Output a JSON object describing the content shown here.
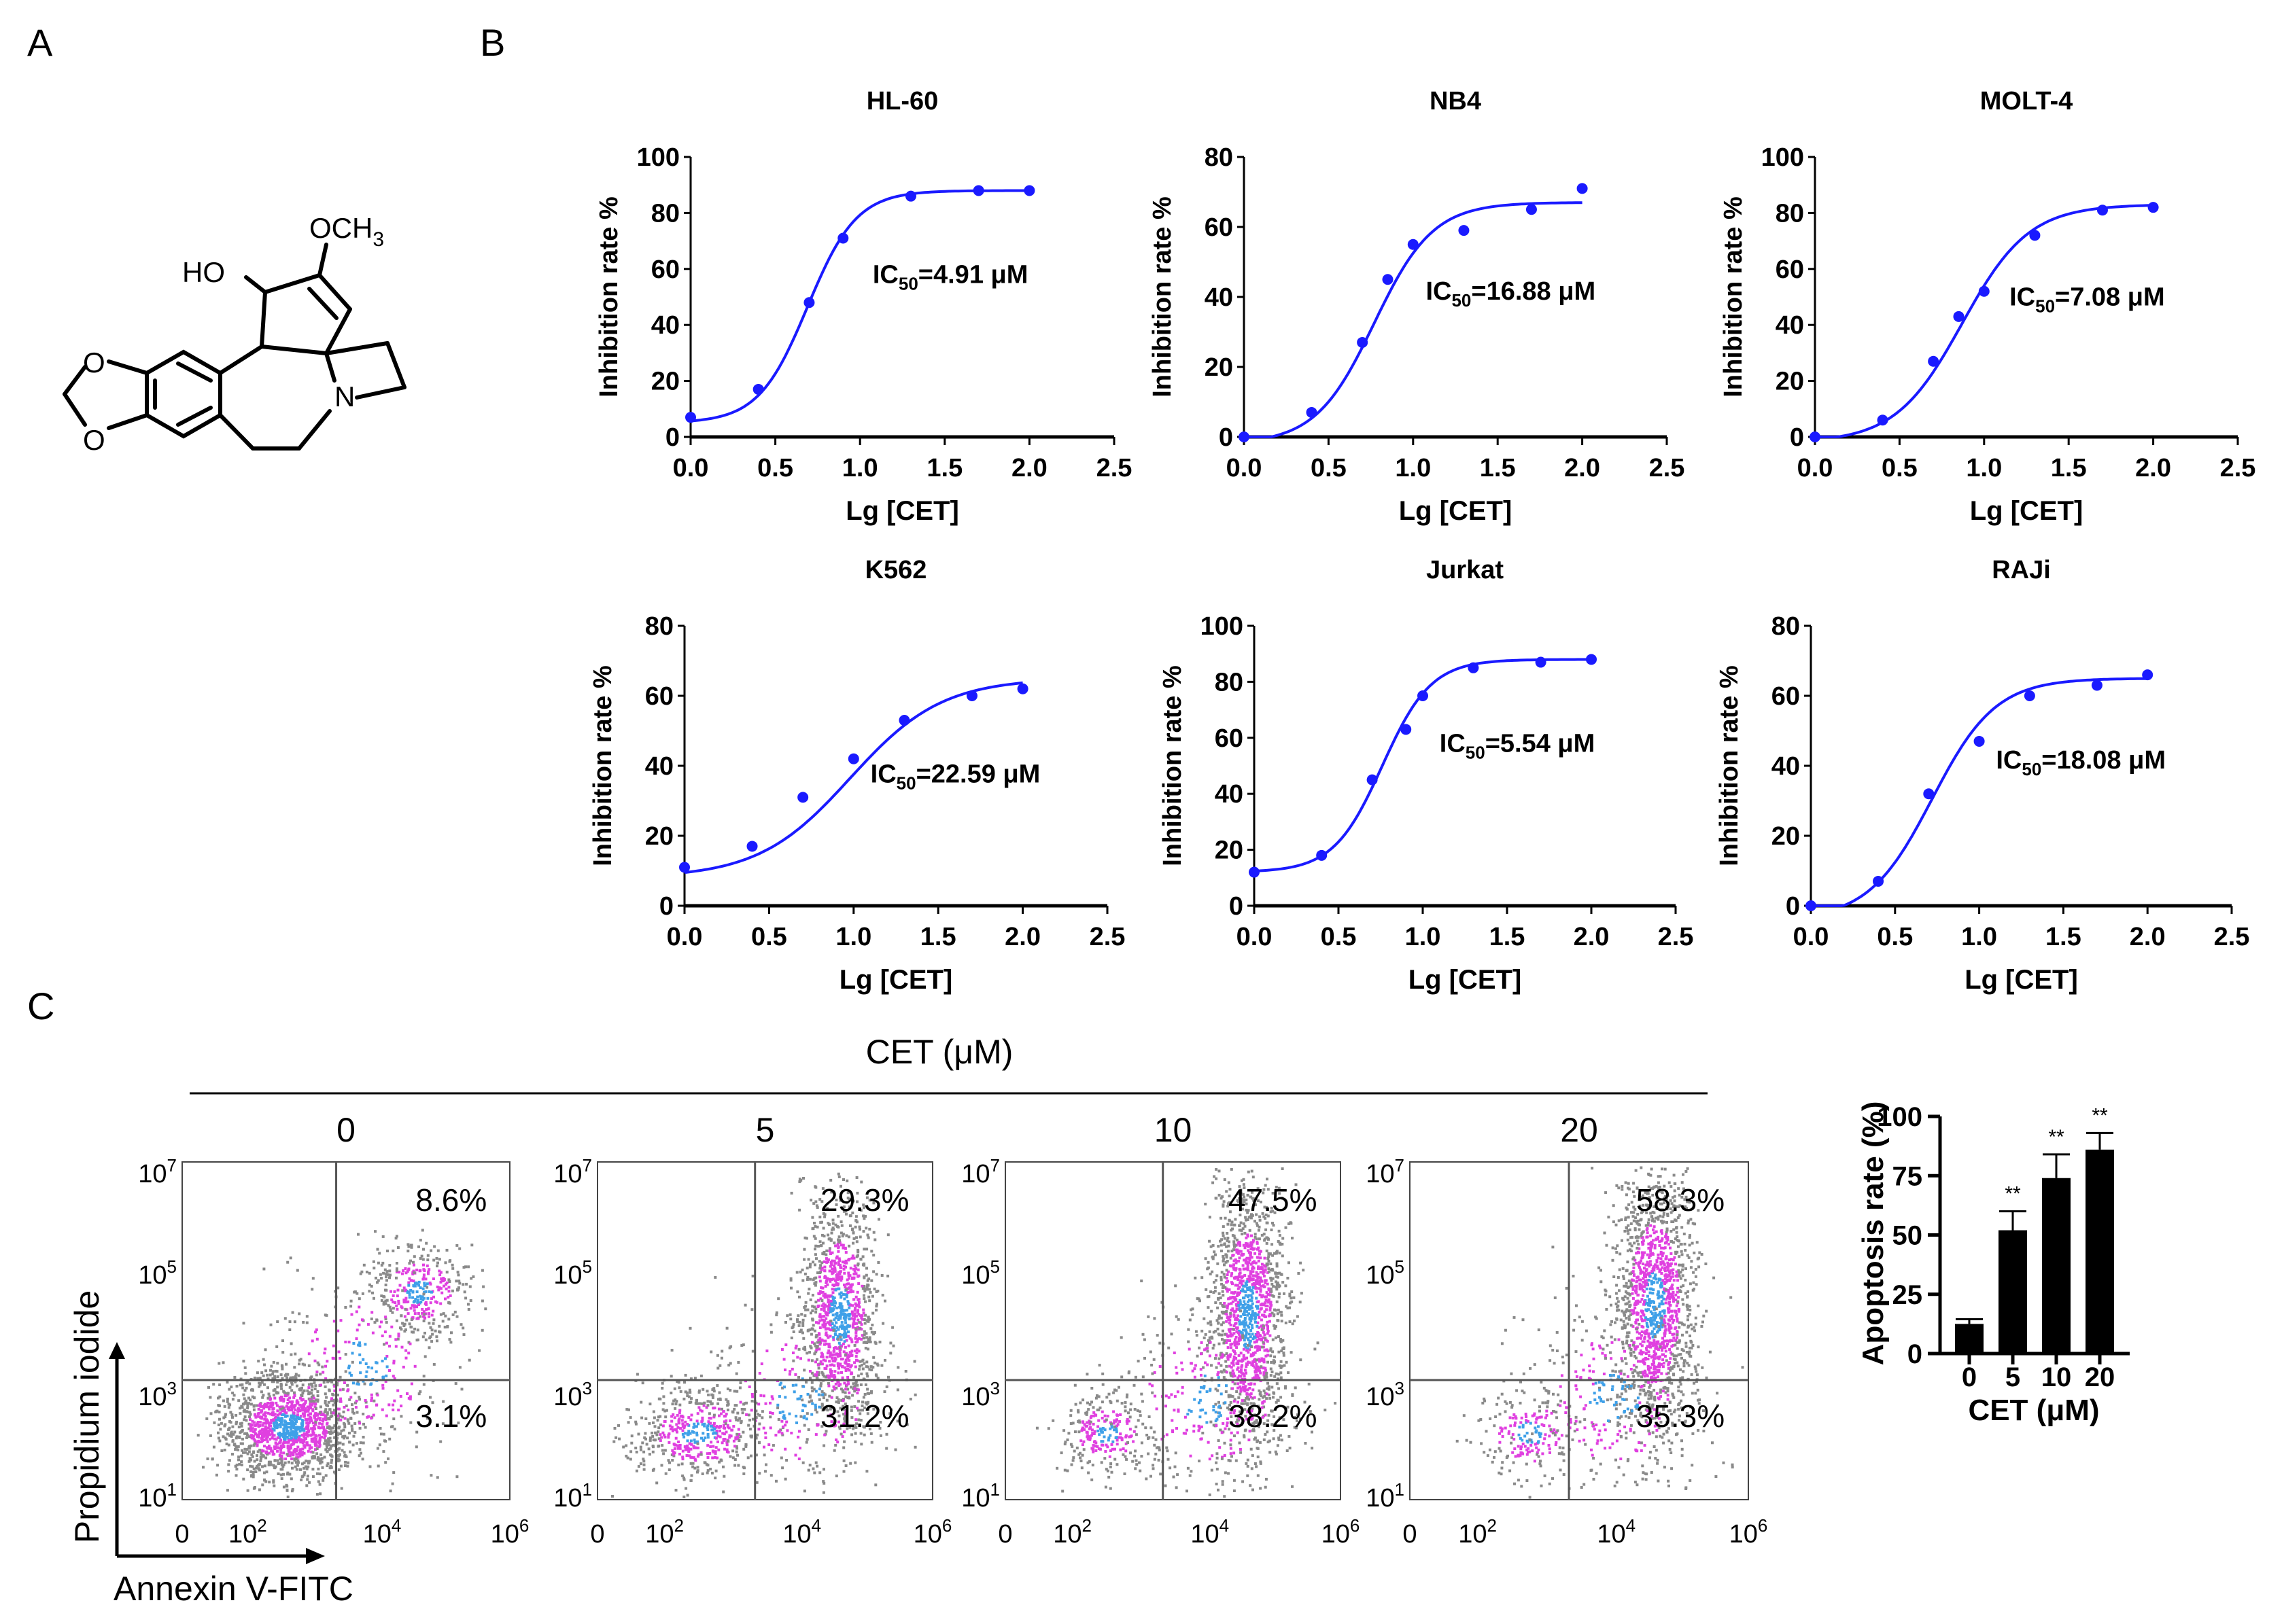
{
  "panel_labels": {
    "a": "A",
    "b": "B",
    "c": "C"
  },
  "structure": {
    "atoms": {
      "ho": "HO",
      "och3": "OCH",
      "och3_sub": "3",
      "n": "N",
      "o1": "O",
      "o2": "O"
    }
  },
  "chart_data": [
    {
      "type": "line",
      "title": "HL-60",
      "xlabel": "Lg [CET]",
      "ylabel": "Inhibition rate %",
      "xlim": [
        0,
        2.5
      ],
      "ylim": [
        0,
        100
      ],
      "xticks": [
        "0.0",
        "0.5",
        "1.0",
        "1.5",
        "2.0",
        "2.5"
      ],
      "yticks": [
        "0",
        "20",
        "40",
        "60",
        "80",
        "100"
      ],
      "x": [
        0,
        0.4,
        0.7,
        0.9,
        1.3,
        1.7,
        2.0
      ],
      "y": [
        7,
        17,
        48,
        71,
        86,
        88,
        88
      ],
      "fit": {
        "bottom": 5,
        "top": 88,
        "log_mid": 0.69,
        "hill": 3.0
      },
      "annotation": {
        "prefix": "IC",
        "sub": "50",
        "value": "=4.91 μM"
      }
    },
    {
      "type": "line",
      "title": "NB4",
      "xlabel": "Lg [CET]",
      "ylabel": "Inhibition rate %",
      "xlim": [
        0,
        2.5
      ],
      "ylim": [
        0,
        80
      ],
      "xticks": [
        "0.0",
        "0.5",
        "1.0",
        "1.5",
        "2.0",
        "2.5"
      ],
      "yticks": [
        "0",
        "20",
        "40",
        "60",
        "80"
      ],
      "x": [
        0,
        0.4,
        0.7,
        0.85,
        1.0,
        1.3,
        1.7,
        2.0
      ],
      "y": [
        0,
        7,
        27,
        45,
        55,
        59,
        65,
        71
      ],
      "fit": {
        "bottom": -2,
        "top": 67,
        "log_mid": 0.77,
        "hill": 2.5
      },
      "annotation": {
        "prefix": "IC",
        "sub": "50",
        "value": "=16.88 μM"
      }
    },
    {
      "type": "line",
      "title": "MOLT-4",
      "xlabel": "Lg [CET]",
      "ylabel": "Inhibition rate %",
      "xlim": [
        0,
        2.5
      ],
      "ylim": [
        0,
        100
      ],
      "xticks": [
        "0.0",
        "0.5",
        "1.0",
        "1.5",
        "2.0",
        "2.5"
      ],
      "yticks": [
        "0",
        "20",
        "40",
        "60",
        "80",
        "100"
      ],
      "x": [
        0,
        0.4,
        0.7,
        0.85,
        1.0,
        1.3,
        1.7,
        2.0
      ],
      "y": [
        0,
        6,
        27,
        43,
        52,
        72,
        81,
        82
      ],
      "fit": {
        "bottom": -2,
        "top": 83,
        "log_mid": 0.87,
        "hill": 2.2
      },
      "annotation": {
        "prefix": "IC",
        "sub": "50",
        "value": "=7.08 μM"
      }
    },
    {
      "type": "line",
      "title": "K562",
      "xlabel": "Lg [CET]",
      "ylabel": "Inhibition rate %",
      "xlim": [
        0,
        2.5
      ],
      "ylim": [
        0,
        80
      ],
      "xticks": [
        "0.0",
        "0.5",
        "1.0",
        "1.5",
        "2.0",
        "2.5"
      ],
      "yticks": [
        "0",
        "20",
        "40",
        "60",
        "80"
      ],
      "x": [
        0,
        0.4,
        0.7,
        1.0,
        1.3,
        1.7,
        2.0
      ],
      "y": [
        11,
        17,
        31,
        42,
        53,
        60,
        62
      ],
      "fit": {
        "bottom": 8,
        "top": 65,
        "log_mid": 0.98,
        "hill": 1.6
      },
      "annotation": {
        "prefix": "IC",
        "sub": "50",
        "value": "=22.59 μM"
      }
    },
    {
      "type": "line",
      "title": "Jurkat",
      "xlabel": "Lg [CET]",
      "ylabel": "Inhibition rate %",
      "xlim": [
        0,
        2.5
      ],
      "ylim": [
        0,
        100
      ],
      "xticks": [
        "0.0",
        "0.5",
        "1.0",
        "1.5",
        "2.0",
        "2.5"
      ],
      "yticks": [
        "0",
        "20",
        "40",
        "60",
        "80",
        "100"
      ],
      "x": [
        0,
        0.4,
        0.7,
        0.9,
        1.0,
        1.3,
        1.7,
        2.0
      ],
      "y": [
        12,
        18,
        45,
        63,
        75,
        85,
        87,
        88
      ],
      "fit": {
        "bottom": 12,
        "top": 88,
        "log_mid": 0.76,
        "hill": 3.0
      },
      "annotation": {
        "prefix": "IC",
        "sub": "50",
        "value": "=5.54 μM"
      }
    },
    {
      "type": "line",
      "title": "RAJi",
      "xlabel": "Lg [CET]",
      "ylabel": "Inhibition rate %",
      "xlim": [
        0,
        2.5
      ],
      "ylim": [
        0,
        80
      ],
      "xticks": [
        "0.0",
        "0.5",
        "1.0",
        "1.5",
        "2.0",
        "2.5"
      ],
      "yticks": [
        "0",
        "20",
        "40",
        "60",
        "80"
      ],
      "x": [
        0,
        0.4,
        0.7,
        1.0,
        1.3,
        1.7,
        2.0
      ],
      "y": [
        0,
        7,
        32,
        47,
        60,
        63,
        66
      ],
      "fit": {
        "bottom": -4,
        "top": 65,
        "log_mid": 0.72,
        "hill": 2.3
      },
      "annotation": {
        "prefix": "IC",
        "sub": "50",
        "value": "=18.08 μM"
      }
    },
    {
      "type": "scatter",
      "title": "CET (μM)",
      "xlabel": "Annexin V-FITC",
      "ylabel": "Propidium iodide",
      "panels": [
        {
          "concentration": "0",
          "upper_right": "8.6%",
          "lower_right": "3.1%"
        },
        {
          "concentration": "5",
          "upper_right": "29.3%",
          "lower_right": "31.2%"
        },
        {
          "concentration": "10",
          "upper_right": "47.5%",
          "lower_right": "38.2%"
        },
        {
          "concentration": "20",
          "upper_right": "58.3%",
          "lower_right": "35.3%"
        }
      ],
      "xticks": [
        {
          "base": "0",
          "exp": ""
        },
        {
          "base": "10",
          "exp": "2"
        },
        {
          "base": "10",
          "exp": "4"
        },
        {
          "base": "10",
          "exp": "6"
        }
      ],
      "yticks": [
        {
          "base": "10",
          "exp": "7"
        },
        {
          "base": "10",
          "exp": "5"
        },
        {
          "base": "10",
          "exp": "3"
        },
        {
          "base": "10",
          "exp": "1"
        }
      ],
      "colors": {
        "sparse": "#8a8a8a",
        "medium": "#e040e0",
        "dense": "#3fa0e8",
        "densest": "#30d060"
      }
    },
    {
      "type": "bar",
      "title": "",
      "xlabel": "CET (μM)",
      "ylabel": "Apoptosis rate (%)",
      "categories": [
        "0",
        "5",
        "10",
        "20"
      ],
      "values": [
        12.5,
        52,
        74,
        86
      ],
      "errors": [
        2,
        8,
        10,
        7
      ],
      "significance": [
        "",
        "**",
        "**",
        "**"
      ],
      "ylim": [
        0,
        100
      ],
      "yticks": [
        "0",
        "25",
        "50",
        "75",
        "100"
      ]
    }
  ],
  "colors": {
    "curve": "#1a1aff",
    "bar": "#000000",
    "axis": "#000000"
  }
}
